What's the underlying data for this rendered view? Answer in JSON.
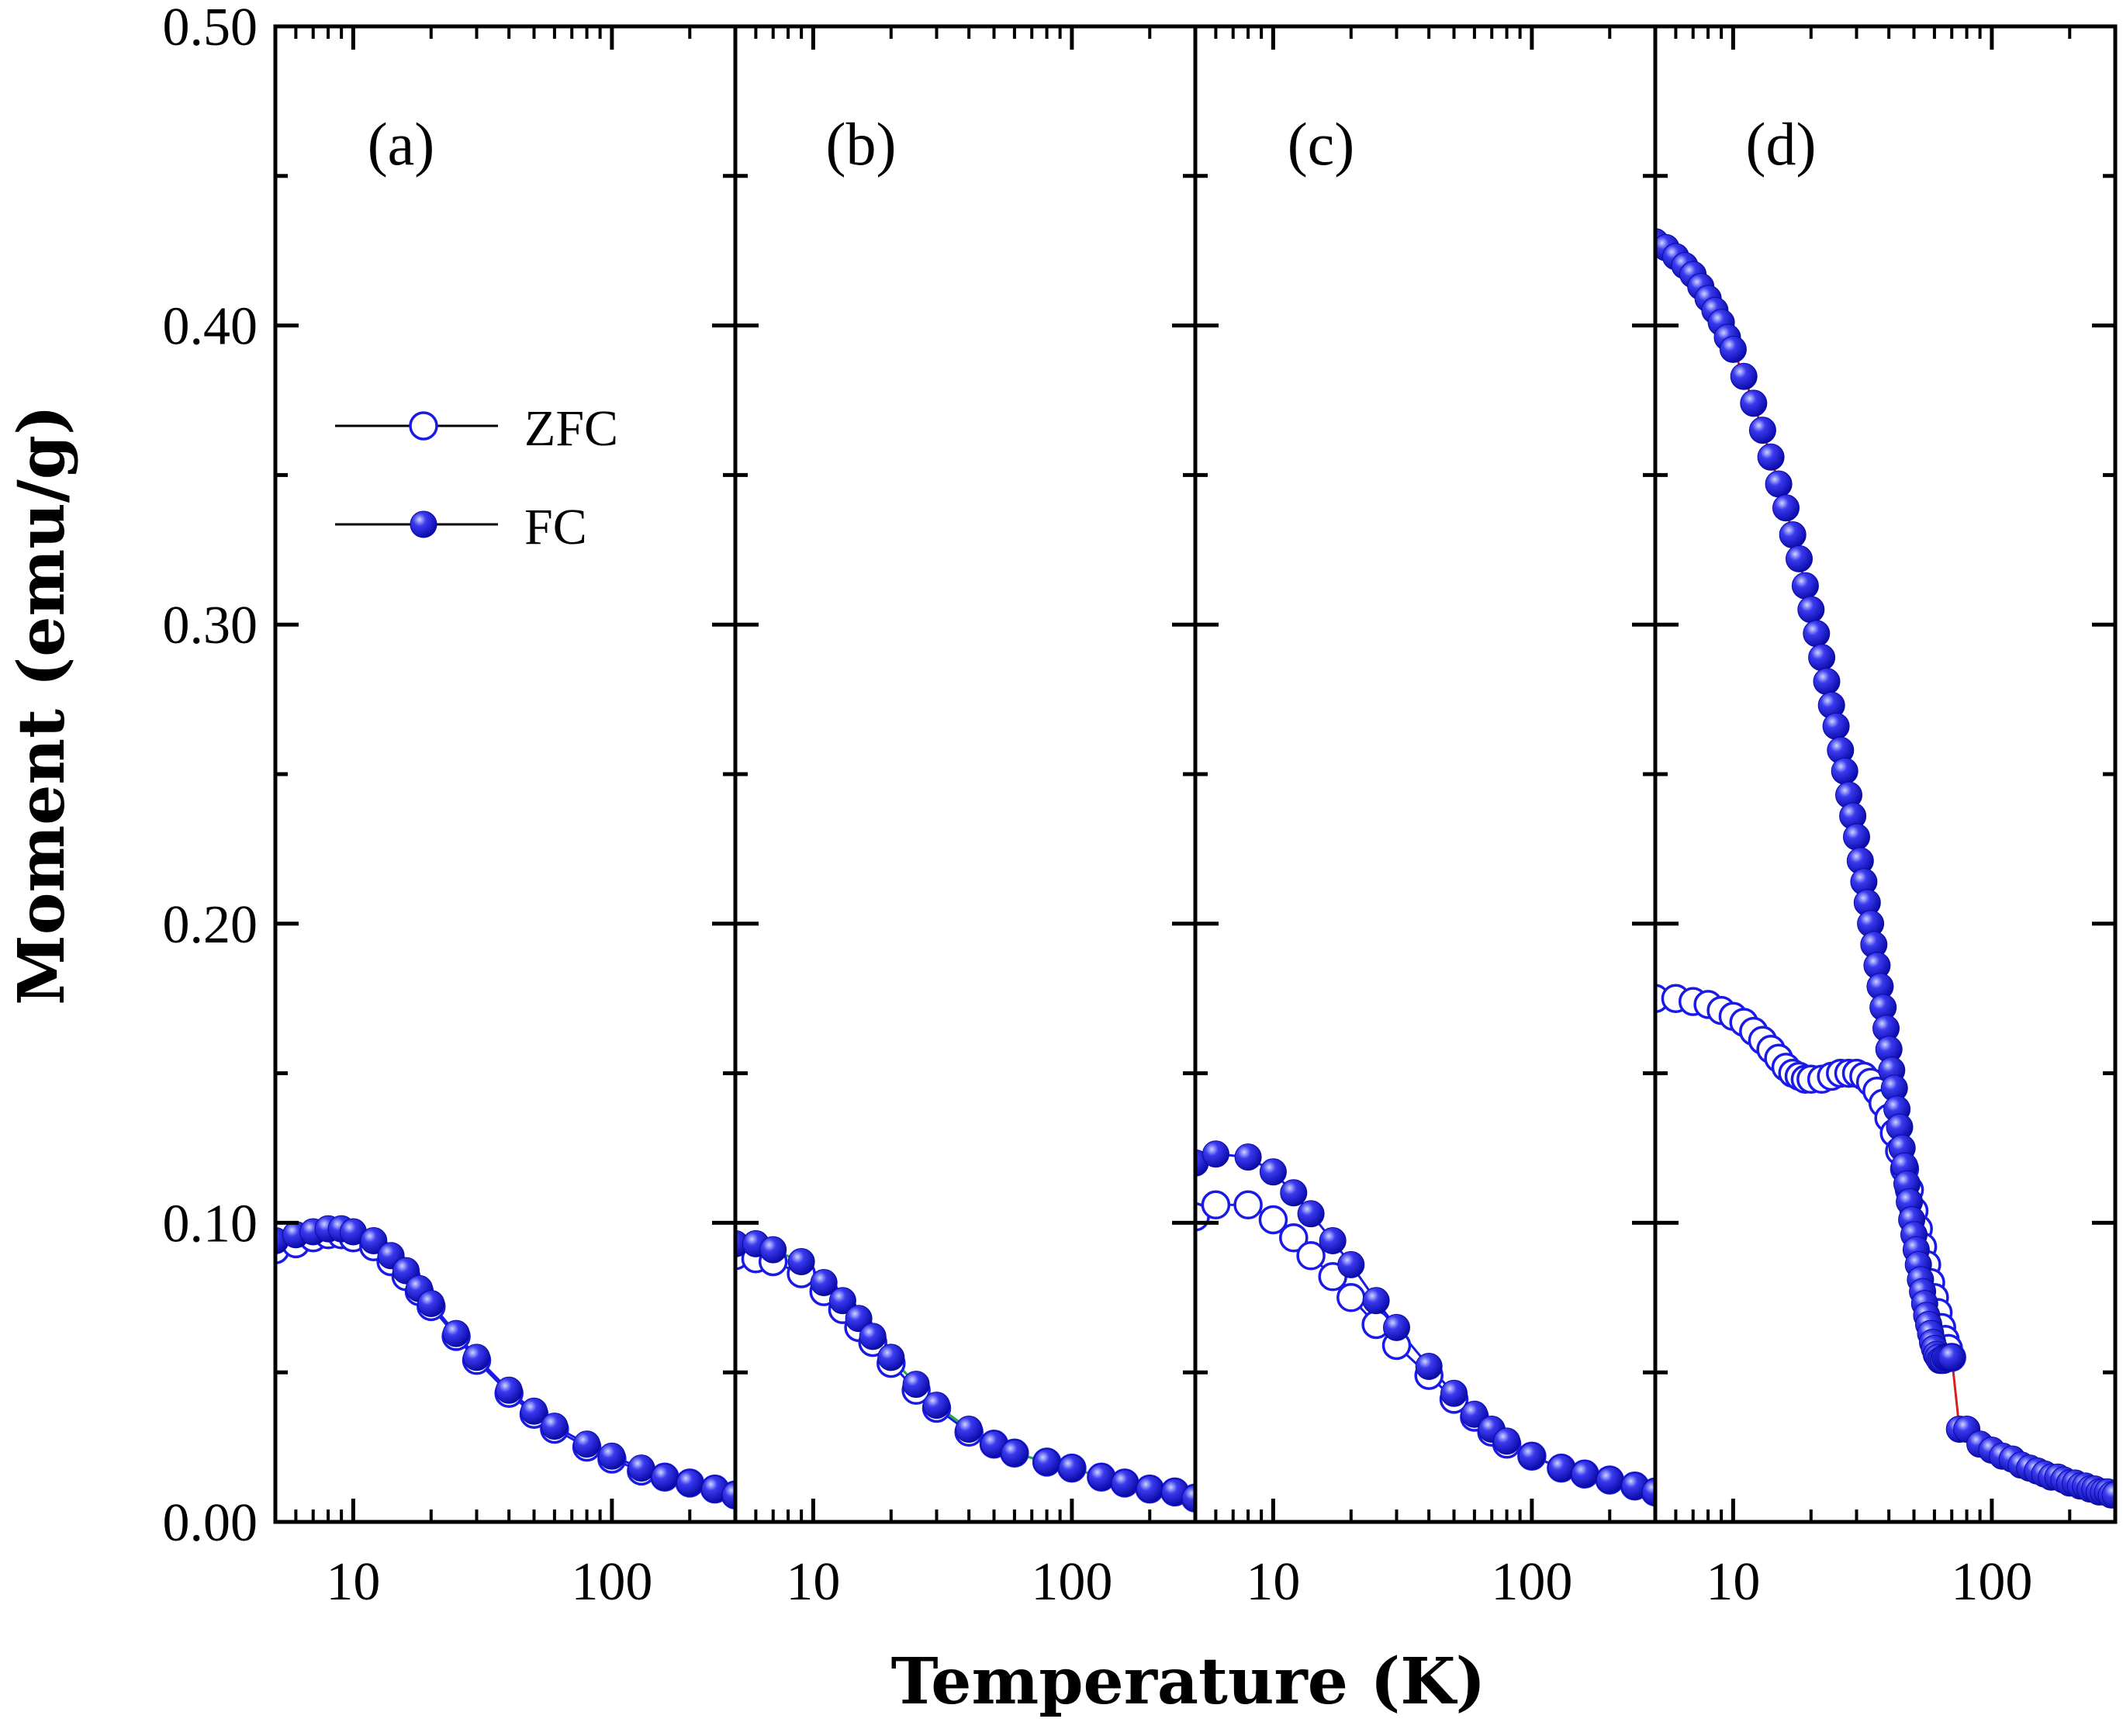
{
  "chart_data": {
    "type": "scatter",
    "xlabel": "Temperature (K)",
    "ylabel": "Moment (emu/g)",
    "xscale": "log",
    "xlim": [
      5,
      300
    ],
    "ylim": [
      0,
      0.5
    ],
    "yticks": [
      "0.00",
      "0.10",
      "0.20",
      "0.30",
      "0.40",
      "0.50"
    ],
    "xticks": [
      {
        "value": 10,
        "label": "10"
      },
      {
        "value": 100,
        "label": "100"
      }
    ],
    "legend": {
      "position": "upper-left of panel (a)",
      "items": [
        {
          "name": "ZFC",
          "marker": "open-circle"
        },
        {
          "name": "FC",
          "marker": "filled-circle"
        }
      ]
    },
    "colors": {
      "marker": "#1a1ae6",
      "line": "#000000",
      "fit_d": "#d42020",
      "fit_b": "#20b040"
    },
    "panels": [
      {
        "label": "(a)",
        "series": [
          {
            "name": "ZFC",
            "T": [
              5,
              6,
              7,
              8,
              9,
              10,
              12,
              14,
              16,
              18,
              20,
              25,
              30,
              40,
              50,
              60,
              80,
              100,
              130,
              160,
              200,
              250,
              300
            ],
            "M": [
              0.091,
              0.093,
              0.095,
              0.096,
              0.096,
              0.095,
              0.092,
              0.087,
              0.082,
              0.077,
              0.072,
              0.062,
              0.054,
              0.043,
              0.036,
              0.031,
              0.025,
              0.021,
              0.017,
              0.015,
              0.013,
              0.011,
              0.009
            ]
          },
          {
            "name": "FC",
            "T": [
              5,
              6,
              7,
              8,
              9,
              10,
              12,
              14,
              16,
              18,
              20,
              25,
              30,
              40,
              50,
              60,
              80,
              100,
              130,
              160,
              200,
              250,
              300
            ],
            "M": [
              0.094,
              0.096,
              0.097,
              0.098,
              0.098,
              0.097,
              0.094,
              0.089,
              0.084,
              0.078,
              0.073,
              0.063,
              0.055,
              0.044,
              0.037,
              0.032,
              0.026,
              0.022,
              0.018,
              0.015,
              0.013,
              0.011,
              0.009
            ]
          }
        ]
      },
      {
        "label": "(b)",
        "series": [
          {
            "name": "ZFC",
            "T": [
              5,
              6,
              7,
              9,
              11,
              13,
              15,
              17,
              20,
              25,
              30,
              40,
              50,
              60,
              80,
              100,
              130,
              160,
              200,
              250,
              300
            ],
            "M": [
              0.089,
              0.088,
              0.087,
              0.083,
              0.077,
              0.071,
              0.065,
              0.06,
              0.053,
              0.044,
              0.038,
              0.03,
              0.026,
              0.023,
              0.02,
              0.018,
              0.015,
              0.013,
              0.011,
              0.01,
              0.008
            ]
          },
          {
            "name": "FC",
            "T": [
              5,
              6,
              7,
              9,
              11,
              13,
              15,
              17,
              20,
              25,
              30,
              40,
              50,
              60,
              80,
              100,
              130,
              160,
              200,
              250,
              300
            ],
            "M": [
              0.093,
              0.093,
              0.091,
              0.087,
              0.08,
              0.074,
              0.068,
              0.062,
              0.055,
              0.046,
              0.039,
              0.031,
              0.026,
              0.023,
              0.02,
              0.018,
              0.015,
              0.013,
              0.011,
              0.01,
              0.008
            ]
          }
        ]
      },
      {
        "label": "(c)",
        "series": [
          {
            "name": "ZFC",
            "T": [
              5,
              6,
              8,
              10,
              12,
              14,
              17,
              20,
              25,
              30,
              40,
              50,
              60,
              70,
              80,
              100,
              130,
              160,
              200,
              250,
              300
            ],
            "M": [
              0.102,
              0.106,
              0.106,
              0.101,
              0.095,
              0.089,
              0.082,
              0.075,
              0.066,
              0.059,
              0.049,
              0.041,
              0.035,
              0.03,
              0.026,
              0.022,
              0.018,
              0.016,
              0.014,
              0.012,
              0.01
            ]
          },
          {
            "name": "FC",
            "T": [
              5,
              6,
              8,
              10,
              12,
              14,
              17,
              20,
              25,
              30,
              40,
              50,
              60,
              70,
              80,
              100,
              130,
              160,
              200,
              250,
              300
            ],
            "M": [
              0.12,
              0.123,
              0.122,
              0.117,
              0.11,
              0.103,
              0.094,
              0.086,
              0.074,
              0.065,
              0.052,
              0.043,
              0.036,
              0.031,
              0.027,
              0.022,
              0.018,
              0.016,
              0.014,
              0.012,
              0.01
            ]
          }
        ]
      },
      {
        "label": "(d)",
        "series": [
          {
            "name": "ZFC",
            "T": [
              5,
              6,
              7,
              8,
              9,
              10,
              11,
              12,
              13,
              14,
              15,
              16,
              17,
              18,
              19,
              20,
              22,
              24,
              26,
              28,
              30,
              32,
              34,
              36,
              38,
              40,
              42,
              44,
              46,
              48,
              50,
              52,
              54,
              56,
              58,
              60,
              62,
              64,
              66,
              68,
              70
            ],
            "M": [
              0.175,
              0.175,
              0.174,
              0.173,
              0.171,
              0.169,
              0.167,
              0.164,
              0.161,
              0.158,
              0.155,
              0.152,
              0.15,
              0.149,
              0.148,
              0.148,
              0.148,
              0.149,
              0.15,
              0.15,
              0.15,
              0.149,
              0.147,
              0.144,
              0.14,
              0.135,
              0.13,
              0.124,
              0.118,
              0.111,
              0.104,
              0.098,
              0.092,
              0.086,
              0.08,
              0.075,
              0.07,
              0.065,
              0.061,
              0.058,
              0.055
            ]
          },
          {
            "name": "FC",
            "T": [
              5,
              5.5,
              6,
              6.5,
              7,
              7.5,
              8,
              8.5,
              9,
              9.5,
              10,
              11,
              12,
              13,
              14,
              15,
              16,
              17,
              18,
              19,
              20,
              21,
              22,
              23,
              24,
              25,
              26,
              27,
              28,
              29,
              30,
              31,
              32,
              33,
              34,
              35,
              36,
              37,
              38,
              39,
              40,
              41,
              42,
              43,
              44,
              45,
              46,
              47,
              48,
              49,
              50,
              51,
              52,
              53,
              54,
              55,
              56,
              57,
              58,
              59,
              60,
              61,
              62,
              63,
              64,
              65,
              66,
              67,
              68,
              69,
              70,
              75,
              80,
              90,
              100,
              110,
              120,
              130,
              140,
              150,
              160,
              170,
              180,
              190,
              200,
              210,
              220,
              230,
              240,
              250,
              260,
              270,
              280,
              290,
              300
            ],
            "M": [
              0.428,
              0.426,
              0.423,
              0.42,
              0.417,
              0.413,
              0.409,
              0.405,
              0.401,
              0.396,
              0.392,
              0.383,
              0.374,
              0.365,
              0.356,
              0.347,
              0.339,
              0.33,
              0.322,
              0.313,
              0.305,
              0.297,
              0.289,
              0.281,
              0.273,
              0.266,
              0.258,
              0.251,
              0.243,
              0.236,
              0.229,
              0.221,
              0.214,
              0.207,
              0.2,
              0.193,
              0.186,
              0.179,
              0.172,
              0.165,
              0.158,
              0.151,
              0.145,
              0.138,
              0.132,
              0.125,
              0.119,
              0.113,
              0.107,
              0.101,
              0.096,
              0.091,
              0.086,
              0.081,
              0.077,
              0.073,
              0.069,
              0.066,
              0.063,
              0.06,
              0.058,
              0.056,
              0.055,
              0.054,
              0.054,
              0.054,
              0.055,
              0.055,
              0.055,
              0.055,
              0.055,
              0.031,
              0.031,
              0.026,
              0.024,
              0.022,
              0.021,
              0.019,
              0.018,
              0.017,
              0.016,
              0.015,
              0.015,
              0.014,
              0.013,
              0.013,
              0.012,
              0.012,
              0.011,
              0.011,
              0.01,
              0.01,
              0.01,
              0.009,
              0.009
            ]
          }
        ]
      }
    ]
  }
}
